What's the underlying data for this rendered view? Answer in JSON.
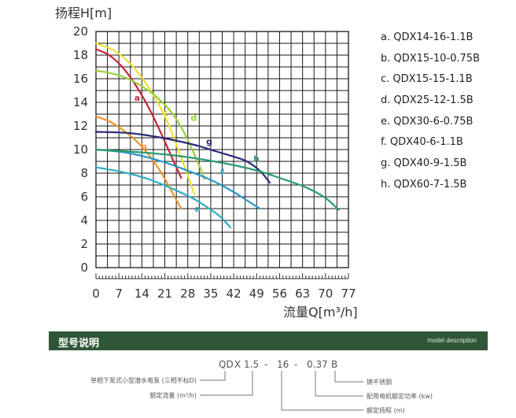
{
  "chart_data": {
    "type": "line",
    "ylabel": "扬程H[m]",
    "xlabel": "流量Q[m³/h]",
    "xlim": [
      0,
      77
    ],
    "ylim": [
      0,
      20
    ],
    "x_ticks": [
      0,
      7,
      14,
      21,
      28,
      35,
      42,
      49,
      56,
      63,
      70,
      77
    ],
    "y_ticks": [
      0,
      2,
      4,
      6,
      8,
      10,
      12,
      14,
      16,
      18,
      20
    ],
    "grid": true,
    "legend_position": "right",
    "series": [
      {
        "name": "a. QDX14-16-1.1B",
        "label": "a",
        "color": "#c8243c",
        "x": [
          0,
          4,
          8,
          12,
          16,
          20,
          24,
          26
        ],
        "y": [
          18.5,
          18.0,
          17.0,
          15.5,
          13.6,
          11.3,
          8.8,
          7.6
        ]
      },
      {
        "name": "b. QDX15-10-0.75B",
        "label": "b",
        "color": "#e8962a",
        "x": [
          0,
          4,
          8,
          12,
          16,
          20,
          24,
          26
        ],
        "y": [
          12.8,
          12.4,
          11.7,
          10.8,
          9.6,
          8.0,
          6.0,
          5.0
        ]
      },
      {
        "name": "c. QDX15-15-1.1B",
        "label": "c",
        "color": "#f0e034",
        "x": [
          0,
          6,
          12,
          18,
          22,
          26,
          28,
          30
        ],
        "y": [
          19.0,
          18.3,
          16.8,
          14.4,
          12.2,
          9.3,
          7.8,
          6.2
        ]
      },
      {
        "name": "d. QDX25-12-1.5B",
        "label": "d",
        "color": "#9bcf3c",
        "x": [
          0,
          8,
          16,
          22,
          26,
          30,
          32,
          33
        ],
        "y": [
          16.7,
          16.2,
          15.0,
          13.5,
          11.9,
          9.6,
          8.3,
          7.5
        ]
      },
      {
        "name": "e. QDX30-6-0.75B",
        "label": "e",
        "color": "#2eaec0",
        "x": [
          0,
          8,
          16,
          24,
          30,
          34,
          38,
          41
        ],
        "y": [
          8.5,
          8.1,
          7.5,
          6.6,
          5.8,
          5.1,
          4.3,
          3.4
        ]
      },
      {
        "name": "f. QDX40-6-1.1B",
        "label": "f",
        "color": "#2a96c8",
        "x": [
          0,
          10,
          20,
          30,
          36,
          42,
          46,
          50
        ],
        "y": [
          10.0,
          9.7,
          9.0,
          8.0,
          7.3,
          6.4,
          5.7,
          5.0
        ]
      },
      {
        "name": "g. QDX40-9-1.5B",
        "label": "g",
        "color": "#2b2a7a",
        "x": [
          0,
          10,
          20,
          30,
          36,
          42,
          46,
          50,
          53
        ],
        "y": [
          11.5,
          11.4,
          11.0,
          10.4,
          9.9,
          9.4,
          9.0,
          8.2,
          7.2
        ]
      },
      {
        "name": "h. QDX60-7-1.5B",
        "label": "h",
        "color": "#2a9b70",
        "x": [
          0,
          12,
          24,
          36,
          48,
          56,
          64,
          70,
          74
        ],
        "y": [
          10.0,
          9.8,
          9.5,
          9.0,
          8.3,
          7.6,
          6.8,
          5.9,
          4.9
        ]
      }
    ]
  },
  "model_description": {
    "title": "型号说明",
    "subtitle": "model description",
    "code_parts": [
      "QD",
      "X",
      "1.5",
      "-",
      "16",
      "-",
      "0.37",
      "B"
    ],
    "labels": {
      "pump_type": "单相下泵式小型潜水电泵 (三相不标D)",
      "flow": "额定流量 (m³/h)",
      "material": "铸不锈钢",
      "power": "配用电机额定功率 (kw)",
      "head": "额定扬程 (m)"
    }
  }
}
